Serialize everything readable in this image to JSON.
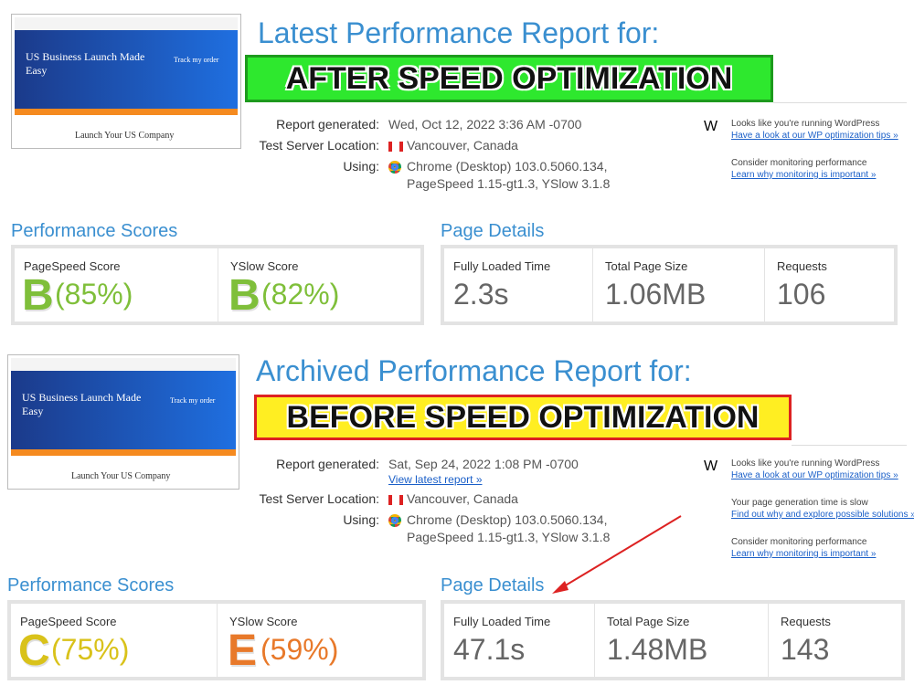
{
  "reports": [
    {
      "heading": "Latest Performance Report for:",
      "banner": "AFTER SPEED OPTIMIZATION",
      "thumbnail": {
        "headline": "US Business Launch Made Easy",
        "order": "Track my order",
        "footer": "Launch Your US Company"
      },
      "meta": [
        {
          "label": "Report generated:",
          "value": [
            "Wed, Oct 12, 2022 3:36 AM -0700"
          ]
        },
        {
          "label": "Test Server Location:",
          "value": [
            "Vancouver, Canada"
          ]
        },
        {
          "label": "Using:",
          "value": [
            "Chrome (Desktop) 103.0.5060.134,",
            "PageSpeed 1.15-gt1.3, YSlow 3.1.8"
          ]
        }
      ],
      "tips": [
        {
          "title": "Looks like you're running WordPress",
          "link": "Have a look at our WP optimization tips »"
        },
        {
          "title": "Consider monitoring performance",
          "link": "Learn why monitoring is important »"
        }
      ],
      "scores": {
        "title": "Performance Scores",
        "items": [
          {
            "label": "PageSpeed Score",
            "grade": "B",
            "percent": "(85%)",
            "color": "#7fbf3a"
          },
          {
            "label": "YSlow Score",
            "grade": "B",
            "percent": "(82%)",
            "color": "#7fbf3a"
          }
        ]
      },
      "details": {
        "title": "Page Details",
        "items": [
          {
            "label": "Fully Loaded Time",
            "value": "2.3s"
          },
          {
            "label": "Total Page Size",
            "value": "1.06MB"
          },
          {
            "label": "Requests",
            "value": "106"
          }
        ]
      }
    },
    {
      "heading": "Archived Performance Report for:",
      "banner": "BEFORE SPEED OPTIMIZATION",
      "thumbnail": {
        "headline": "US Business Launch Made Easy",
        "order": "Track my order",
        "footer": "Launch Your US Company"
      },
      "meta": [
        {
          "label": "Report generated:",
          "value": [
            "Sat, Sep 24, 2022 1:08 PM -0700"
          ],
          "link": "View latest report »"
        },
        {
          "label": "Test Server Location:",
          "value": [
            "Vancouver, Canada"
          ]
        },
        {
          "label": "Using:",
          "value": [
            "Chrome (Desktop) 103.0.5060.134,",
            "PageSpeed 1.15-gt1.3, YSlow 3.1.8"
          ]
        }
      ],
      "tips": [
        {
          "title": "Looks like you're running WordPress",
          "link": "Have a look at our WP optimization tips »"
        },
        {
          "title": "Your page generation time is slow",
          "link": "Find out why and explore possible solutions »"
        },
        {
          "title": "Consider monitoring performance",
          "link": "Learn why monitoring is important »"
        }
      ],
      "scores": {
        "title": "Performance Scores",
        "items": [
          {
            "label": "PageSpeed Score",
            "grade": "C",
            "percent": "(75%)",
            "color": "#d9c21a"
          },
          {
            "label": "YSlow Score",
            "grade": "E",
            "percent": "(59%)",
            "color": "#e8792a"
          }
        ]
      },
      "details": {
        "title": "Page Details",
        "items": [
          {
            "label": "Fully Loaded Time",
            "value": "47.1s"
          },
          {
            "label": "Total Page Size",
            "value": "1.48MB"
          },
          {
            "label": "Requests",
            "value": "143"
          }
        ]
      }
    }
  ]
}
